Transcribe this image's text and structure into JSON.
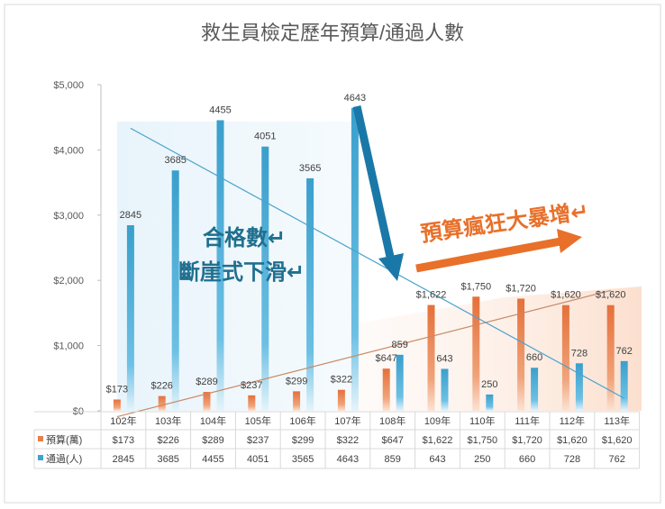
{
  "chart_data": {
    "type": "bar",
    "title": "救生員檢定歷年預算/通過人數",
    "categories": [
      "102年",
      "103年",
      "104年",
      "105年",
      "106年",
      "107年",
      "108年",
      "109年",
      "110年",
      "111年",
      "112年",
      "113年"
    ],
    "series": [
      {
        "name": "預算(萬)",
        "values": [
          173,
          226,
          289,
          237,
          299,
          322,
          647,
          1622,
          1750,
          1720,
          1620,
          1620
        ],
        "labels": [
          "$173",
          "$226",
          "$289",
          "$237",
          "$299",
          "$322",
          "$647",
          "$1,622",
          "$1,750",
          "$1,720",
          "$1,620",
          "$1,620"
        ],
        "color": "#e8804a",
        "trendline": true
      },
      {
        "name": "通過(人)",
        "values": [
          2845,
          3685,
          4455,
          4051,
          3565,
          4643,
          859,
          643,
          250,
          660,
          728,
          762
        ],
        "labels": [
          "2845",
          "3685",
          "4455",
          "4051",
          "3565",
          "4643",
          "859",
          "643",
          "250",
          "660",
          "728",
          "762"
        ],
        "color": "#3fa3cf",
        "trendline": true
      }
    ],
    "yticks": [
      "$0",
      "$1,000",
      "$2,000",
      "$3,000",
      "$4,000",
      "$5,000"
    ],
    "ylim": [
      0,
      5000
    ],
    "grid": false,
    "data_table": true,
    "annotations": [
      {
        "text": "合格數↵",
        "color": "#1f6f8f"
      },
      {
        "text": "斷崖式下滑↵",
        "color": "#1f6f8f"
      },
      {
        "text": "預算瘋狂大暴增↵",
        "color": "#e8702a"
      }
    ]
  }
}
